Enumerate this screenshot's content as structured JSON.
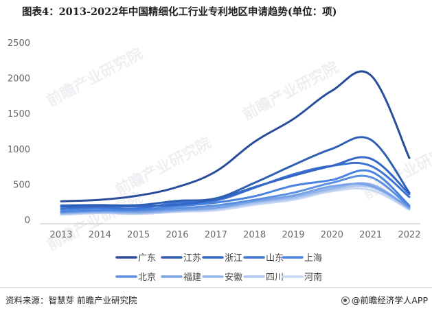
{
  "title": "图表4：2013-2022年中国精细化工行业专利地区申请趋势(单位：项)",
  "footer": {
    "source": "资料来源：智慧芽 前瞻产业研究院",
    "brand": "@前瞻经济学人APP",
    "brand_icon": "qianzhan-logo-icon"
  },
  "watermark": "前瞻产业研究院",
  "chart_data": {
    "type": "line",
    "x": [
      "2013",
      "2014",
      "2015",
      "2016",
      "2017",
      "2018",
      "2019",
      "2020",
      "2021",
      "2022"
    ],
    "ylim": [
      0,
      2500
    ],
    "yticks": [
      "0",
      "500",
      "1000",
      "1500",
      "2000",
      "2500"
    ],
    "grid": false,
    "legend_position": "bottom",
    "series": [
      {
        "name": "广东",
        "color": "#2a4d9b",
        "values": [
          260,
          280,
          340,
          460,
          680,
          1100,
          1420,
          1820,
          2040,
          870
        ]
      },
      {
        "name": "江苏",
        "color": "#2f5fb3",
        "values": [
          200,
          205,
          205,
          265,
          300,
          520,
          770,
          1000,
          1130,
          380
        ]
      },
      {
        "name": "浙江",
        "color": "#3366c4",
        "values": [
          180,
          190,
          190,
          210,
          285,
          460,
          620,
          760,
          860,
          360
        ]
      },
      {
        "name": "山东",
        "color": "#3d73d2",
        "values": [
          150,
          170,
          160,
          240,
          270,
          450,
          640,
          760,
          760,
          320
        ]
      },
      {
        "name": "上海",
        "color": "#4a83e0",
        "values": [
          120,
          140,
          140,
          190,
          240,
          330,
          480,
          560,
          680,
          200
        ]
      },
      {
        "name": "北京",
        "color": "#5b8fe0",
        "values": [
          110,
          130,
          130,
          160,
          200,
          280,
          380,
          520,
          600,
          180
        ]
      },
      {
        "name": "福建",
        "color": "#7aa3e6",
        "values": [
          100,
          120,
          110,
          140,
          170,
          260,
          340,
          470,
          480,
          170
        ]
      },
      {
        "name": "安徽",
        "color": "#93b5ec",
        "values": [
          90,
          110,
          100,
          130,
          160,
          250,
          320,
          440,
          500,
          160
        ]
      },
      {
        "name": "四川",
        "color": "#aec6f0",
        "values": [
          80,
          100,
          90,
          120,
          150,
          230,
          300,
          420,
          460,
          150
        ]
      },
      {
        "name": "河南",
        "color": "#c9d8f4",
        "values": [
          70,
          90,
          80,
          110,
          130,
          210,
          280,
          400,
          420,
          140
        ]
      }
    ]
  }
}
